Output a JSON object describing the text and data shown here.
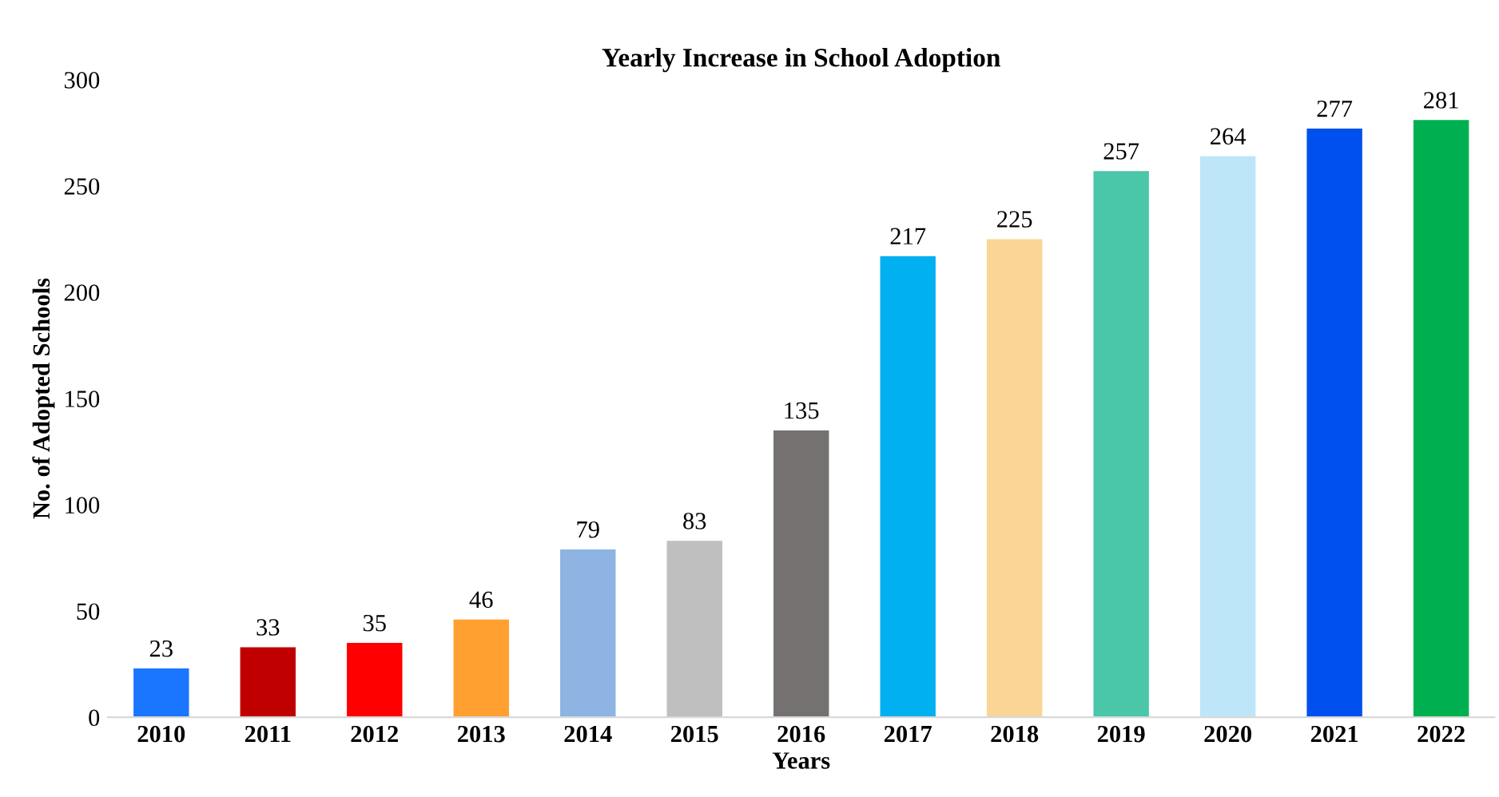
{
  "chart_data": {
    "type": "bar",
    "title": "Yearly Increase in School Adoption",
    "xlabel": "Years",
    "ylabel": "No. of Adopted Schools",
    "categories": [
      "2010",
      "2011",
      "2012",
      "2013",
      "2014",
      "2015",
      "2016",
      "2017",
      "2018",
      "2019",
      "2020",
      "2021",
      "2022"
    ],
    "values": [
      23,
      33,
      35,
      46,
      79,
      83,
      135,
      217,
      225,
      257,
      264,
      277,
      281
    ],
    "colors": [
      "#1a75ff",
      "#c00000",
      "#ff0000",
      "#ffa030",
      "#8db4e2",
      "#bfbfbf",
      "#767171",
      "#00b0f0",
      "#fad596",
      "#4ac6a9",
      "#bde6f8",
      "#0050ef",
      "#00b050"
    ],
    "ylim": [
      0,
      300
    ],
    "yticks": [
      0,
      50,
      100,
      150,
      200,
      250,
      300
    ],
    "grid": false,
    "data_labels": true
  }
}
